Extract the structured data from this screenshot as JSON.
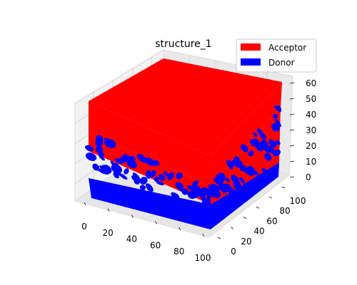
{
  "chart_data": {
    "type": "3d-voxel",
    "title": "structure_1",
    "xlabel": "",
    "ylabel": "",
    "zlabel": "",
    "x_ticks": [
      "0",
      "20",
      "40",
      "60",
      "80",
      "100"
    ],
    "y_ticks": [
      "0",
      "20",
      "40",
      "60",
      "80",
      "100"
    ],
    "z_ticks": [
      "0",
      "10",
      "20",
      "30",
      "40",
      "50",
      "60"
    ],
    "xlim": [
      0,
      100
    ],
    "ylim": [
      0,
      100
    ],
    "zlim": [
      0,
      65
    ],
    "grid": true,
    "legend_position": "top-right",
    "series": [
      {
        "name": "Acceptor",
        "color": "#ff0000",
        "description_regions": {
          "solid_z": [
            34,
            63
          ],
          "mixed_z": [
            8,
            34
          ]
        }
      },
      {
        "name": "Donor",
        "color": "#0000ff",
        "description_regions": {
          "solid_z": [
            0,
            8
          ],
          "mixed_z": [
            8,
            34
          ]
        }
      }
    ]
  }
}
